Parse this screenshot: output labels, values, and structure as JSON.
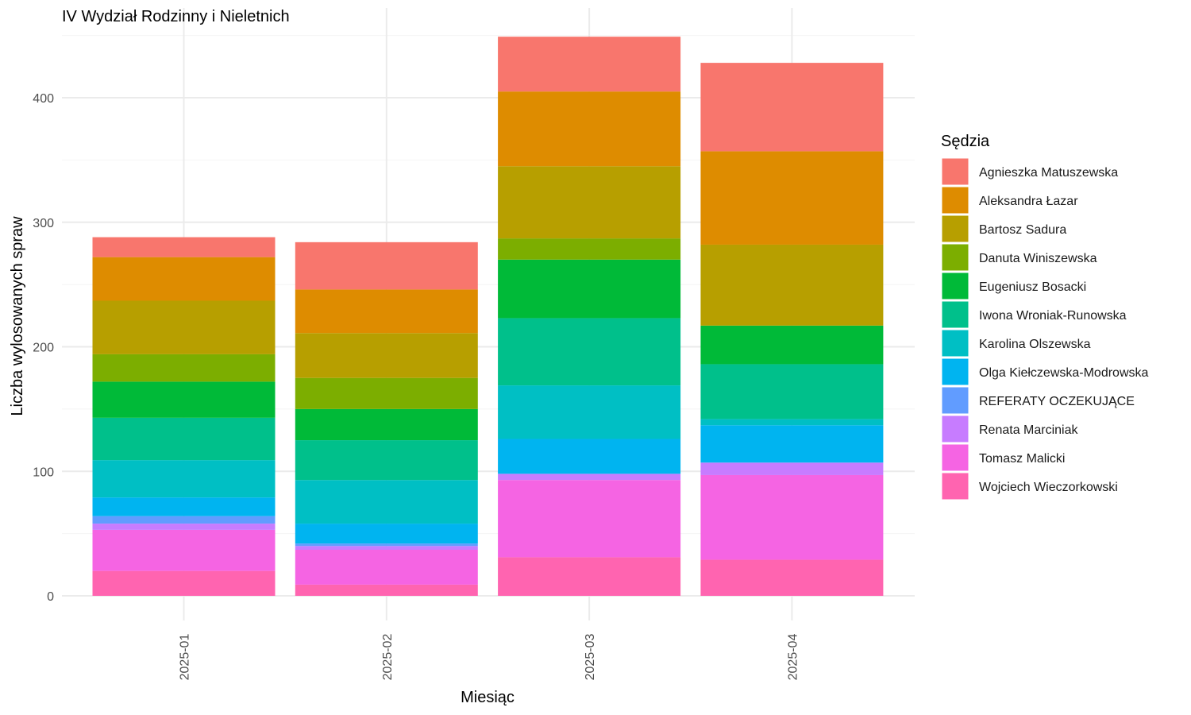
{
  "chart_data": {
    "type": "bar",
    "stacked": true,
    "title": "IV Wydział Rodzinny i Nieletnich",
    "xlabel": "Miesiąc",
    "ylabel": "Liczba wylosowanych spraw",
    "ylim": [
      0,
      460
    ],
    "y_ticks": [
      0,
      100,
      200,
      300,
      400
    ],
    "grid": true,
    "legend_title": "Sędzia",
    "legend_position": "right",
    "categories": [
      "2025-01",
      "2025-02",
      "2025-03",
      "2025-04"
    ],
    "series": [
      {
        "name": "Agnieszka Matuszewska",
        "color": "#F8766D",
        "values": [
          16,
          38,
          44,
          71
        ]
      },
      {
        "name": "Aleksandra Łazar",
        "color": "#DE8C00",
        "values": [
          35,
          35,
          60,
          75
        ]
      },
      {
        "name": "Bartosz Sadura",
        "color": "#B79F00",
        "values": [
          43,
          36,
          58,
          65
        ]
      },
      {
        "name": "Danuta Winiszewska",
        "color": "#7CAE00",
        "values": [
          22,
          25,
          17,
          0
        ]
      },
      {
        "name": "Eugeniusz Bosacki",
        "color": "#00BA38",
        "values": [
          29,
          25,
          47,
          31
        ]
      },
      {
        "name": "Iwona Wroniak-Runowska",
        "color": "#00C08B",
        "values": [
          34,
          32,
          54,
          44
        ]
      },
      {
        "name": "Karolina Olszewska",
        "color": "#00BFC4",
        "values": [
          30,
          35,
          43,
          5
        ]
      },
      {
        "name": "Olga Kiełczewska-Modrowska",
        "color": "#00B4F0",
        "values": [
          15,
          16,
          28,
          30
        ]
      },
      {
        "name": "REFERATY OCZEKUJĄCE",
        "color": "#619CFF",
        "values": [
          6,
          2,
          0,
          0
        ]
      },
      {
        "name": "Renata Marciniak",
        "color": "#C77CFF",
        "values": [
          5,
          3,
          5,
          10
        ]
      },
      {
        "name": "Tomasz Malicki",
        "color": "#F564E3",
        "values": [
          33,
          28,
          62,
          68
        ]
      },
      {
        "name": "Wojciech Wieczorkowski",
        "color": "#FF64B0",
        "values": [
          20,
          9,
          31,
          29
        ]
      }
    ]
  }
}
